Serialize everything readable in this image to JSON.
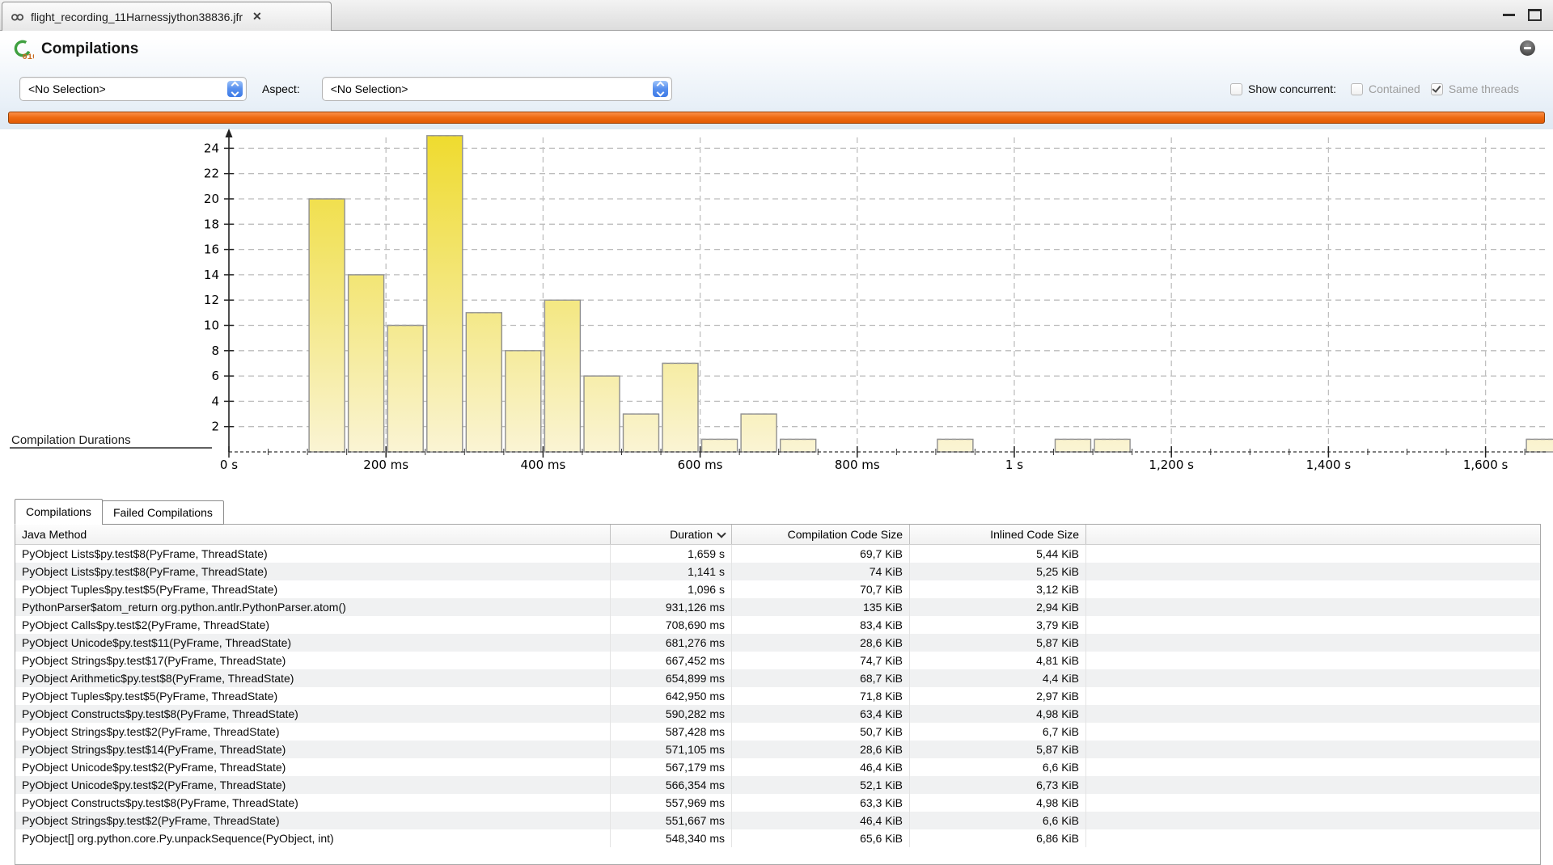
{
  "window": {
    "tab_title": "flight_recording_11Harnessjython38836.jfr"
  },
  "header": {
    "title": "Compilations"
  },
  "toolbar": {
    "selection_value": "<No Selection>",
    "aspect_label": "Aspect:",
    "aspect_value": "<No Selection>",
    "show_concurrent_label": "Show concurrent:",
    "contained_label": "Contained",
    "same_threads_label": "Same threads",
    "show_concurrent_checked": false,
    "contained_checked": false,
    "same_threads_checked": true
  },
  "chart_data": {
    "type": "bar",
    "title": "Compilation Durations",
    "xlabel": "",
    "ylabel": "",
    "ylim": [
      0,
      25
    ],
    "grid": true,
    "y_ticks": [
      2,
      4,
      6,
      8,
      10,
      12,
      14,
      16,
      18,
      20,
      22,
      24
    ],
    "x_tick_ms": [
      0,
      200,
      400,
      600,
      800,
      1000,
      1200,
      1400,
      1600
    ],
    "x_tick_labels": [
      "0 s",
      "200 ms",
      "400 ms",
      "600 ms",
      "800 ms",
      "1 s",
      "1,200 s",
      "1,400 s",
      "1,600 s"
    ],
    "bin_width_ms": 50,
    "bars": [
      {
        "start_ms": 100,
        "count": 20
      },
      {
        "start_ms": 150,
        "count": 14
      },
      {
        "start_ms": 200,
        "count": 10
      },
      {
        "start_ms": 250,
        "count": 25
      },
      {
        "start_ms": 300,
        "count": 11
      },
      {
        "start_ms": 350,
        "count": 8
      },
      {
        "start_ms": 400,
        "count": 12
      },
      {
        "start_ms": 450,
        "count": 6
      },
      {
        "start_ms": 500,
        "count": 3
      },
      {
        "start_ms": 550,
        "count": 7
      },
      {
        "start_ms": 600,
        "count": 1
      },
      {
        "start_ms": 650,
        "count": 3
      },
      {
        "start_ms": 700,
        "count": 1
      },
      {
        "start_ms": 900,
        "count": 1
      },
      {
        "start_ms": 1050,
        "count": 1
      },
      {
        "start_ms": 1100,
        "count": 1
      },
      {
        "start_ms": 1650,
        "count": 1
      }
    ]
  },
  "tabs": [
    {
      "label": "Compilations",
      "active": true
    },
    {
      "label": "Failed Compilations",
      "active": false
    }
  ],
  "table": {
    "columns": [
      "Java Method",
      "Duration",
      "Compilation Code Size",
      "Inlined Code Size"
    ],
    "sort_column": "Duration",
    "sort_direction": "descending",
    "rows": [
      [
        "PyObject Lists$py.test$8(PyFrame, ThreadState)",
        "1,659 s",
        "69,7 KiB",
        "5,44 KiB"
      ],
      [
        "PyObject Lists$py.test$8(PyFrame, ThreadState)",
        "1,141 s",
        "74 KiB",
        "5,25 KiB"
      ],
      [
        "PyObject Tuples$py.test$5(PyFrame, ThreadState)",
        "1,096 s",
        "70,7 KiB",
        "3,12 KiB"
      ],
      [
        "PythonParser$atom_return org.python.antlr.PythonParser.atom()",
        "931,126 ms",
        "135 KiB",
        "2,94 KiB"
      ],
      [
        "PyObject Calls$py.test$2(PyFrame, ThreadState)",
        "708,690 ms",
        "83,4 KiB",
        "3,79 KiB"
      ],
      [
        "PyObject Unicode$py.test$11(PyFrame, ThreadState)",
        "681,276 ms",
        "28,6 KiB",
        "5,87 KiB"
      ],
      [
        "PyObject Strings$py.test$17(PyFrame, ThreadState)",
        "667,452 ms",
        "74,7 KiB",
        "4,81 KiB"
      ],
      [
        "PyObject Arithmetic$py.test$8(PyFrame, ThreadState)",
        "654,899 ms",
        "68,7 KiB",
        "4,4 KiB"
      ],
      [
        "PyObject Tuples$py.test$5(PyFrame, ThreadState)",
        "642,950 ms",
        "71,8 KiB",
        "2,97 KiB"
      ],
      [
        "PyObject Constructs$py.test$8(PyFrame, ThreadState)",
        "590,282 ms",
        "63,4 KiB",
        "4,98 KiB"
      ],
      [
        "PyObject Strings$py.test$2(PyFrame, ThreadState)",
        "587,428 ms",
        "50,7 KiB",
        "6,7 KiB"
      ],
      [
        "PyObject Strings$py.test$14(PyFrame, ThreadState)",
        "571,105 ms",
        "28,6 KiB",
        "5,87 KiB"
      ],
      [
        "PyObject Unicode$py.test$2(PyFrame, ThreadState)",
        "567,179 ms",
        "46,4 KiB",
        "6,6 KiB"
      ],
      [
        "PyObject Unicode$py.test$2(PyFrame, ThreadState)",
        "566,354 ms",
        "52,1 KiB",
        "6,73 KiB"
      ],
      [
        "PyObject Constructs$py.test$8(PyFrame, ThreadState)",
        "557,969 ms",
        "63,3 KiB",
        "4,98 KiB"
      ],
      [
        "PyObject Strings$py.test$2(PyFrame, ThreadState)",
        "551,667 ms",
        "46,4 KiB",
        "6,6 KiB"
      ],
      [
        "PyObject[] org.python.core.Py.unpackSequence(PyObject, int)",
        "548,340 ms",
        "65,6 KiB",
        "6,86 KiB"
      ]
    ]
  },
  "colors": {
    "progress_orange": "#ee6a12",
    "bar_yellow_top": "#efdb2e",
    "bar_yellow_bottom": "#faf4d4",
    "stepper_blue": "#3d7ae7",
    "row_stripe": "#f0f1f2"
  }
}
